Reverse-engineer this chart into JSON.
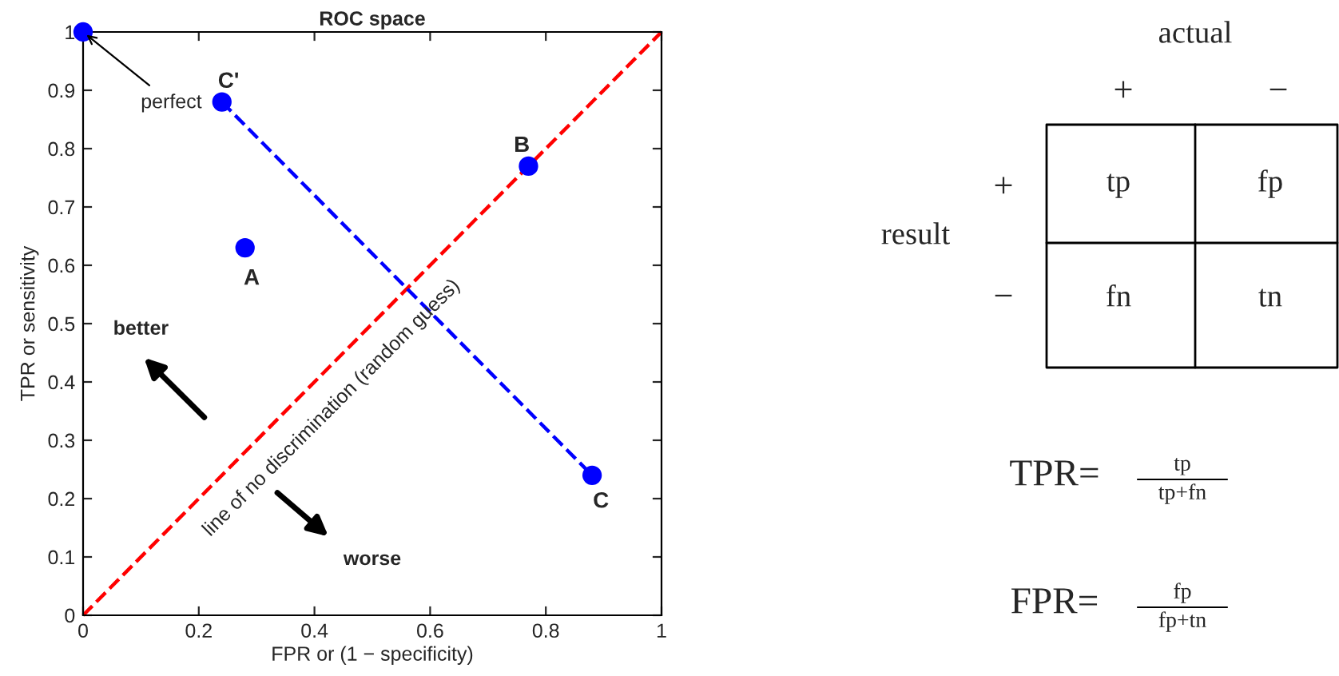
{
  "chart_data": [
    {
      "type": "scatter",
      "title": "ROC space",
      "xlabel": "FPR or (1 − specificity)",
      "ylabel": "TPR or sensitivity",
      "xlim": [
        0,
        1
      ],
      "ylim": [
        0,
        1
      ],
      "xticks": [
        0,
        0.2,
        0.4,
        0.6,
        0.8,
        1
      ],
      "yticks": [
        0,
        0.1,
        0.2,
        0.3,
        0.4,
        0.5,
        0.6,
        0.7,
        0.8,
        0.9,
        1
      ],
      "grid": false,
      "legend": false,
      "series": [
        {
          "type": "line",
          "color": "#ff0000",
          "x": [
            0,
            1
          ],
          "values": [
            0,
            1
          ],
          "line_style": "dashed"
        },
        {
          "type": "line",
          "color": "#0000ff",
          "x": [
            0.24,
            0.88
          ],
          "values": [
            0.88,
            0.24
          ],
          "line_style": "dashed"
        },
        {
          "type": "scatter",
          "color": "#0000ff",
          "x": [
            0,
            0.28,
            0.77,
            0.88,
            0.24
          ],
          "values": [
            1,
            0.63,
            0.77,
            0.24,
            0.88
          ],
          "marker": "circle"
        }
      ],
      "annotations": [
        {
          "text": "perfect",
          "x": 0,
          "y": 1
        },
        {
          "text": "C'",
          "x": 0.24,
          "y": 0.88
        },
        {
          "text": "B",
          "x": 0.77,
          "y": 0.77
        },
        {
          "text": "A",
          "x": 0.28,
          "y": 0.63
        },
        {
          "text": "C",
          "x": 0.88,
          "y": 0.24
        },
        "better",
        "worse",
        "line of no discrimination (random guess)"
      ]
    },
    {
      "type": "other",
      "annotations": [
        "actual",
        "+",
        "−",
        "result",
        "+",
        "−",
        "tp",
        "fp",
        "fn",
        "tn",
        "TPR=",
        "tp",
        "tp+fn",
        "FPR=",
        "fp",
        "fp+tn"
      ]
    }
  ]
}
